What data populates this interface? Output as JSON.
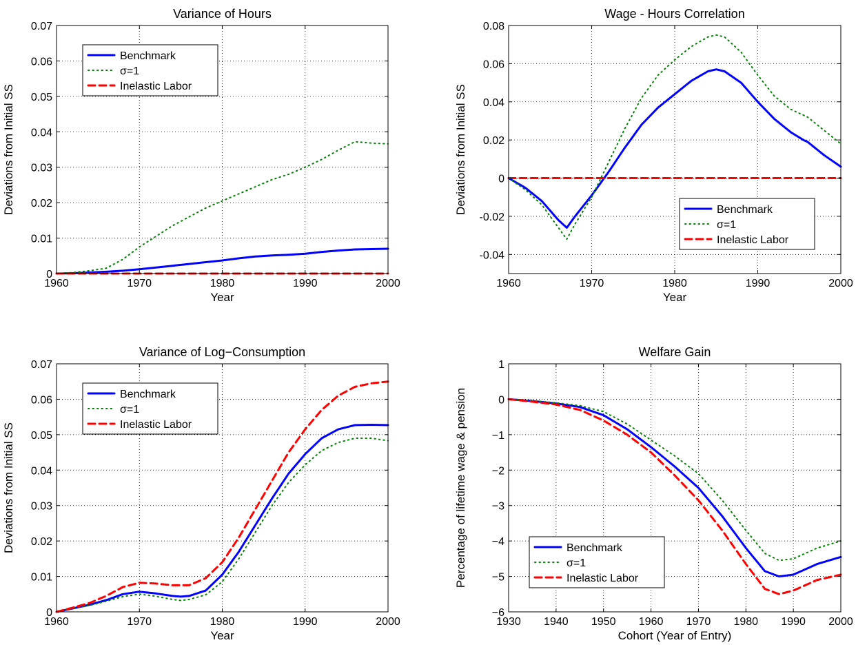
{
  "colors": {
    "benchmark": "#0000ff",
    "sigma": "#008000",
    "inelastic": "#ff0000"
  },
  "chart_data": [
    {
      "type": "line",
      "title": "Variance of Hours",
      "xlabel": "Year",
      "ylabel": "Deviations from Initial SS",
      "xlim": [
        1960,
        2000
      ],
      "ylim": [
        0,
        0.07
      ],
      "xticks": [
        1960,
        1970,
        1980,
        1990,
        2000
      ],
      "yticks": [
        0,
        0.01,
        0.02,
        0.03,
        0.04,
        0.05,
        0.06,
        0.07
      ],
      "ytick_labels": [
        "0",
        "0.01",
        "0.02",
        "0.03",
        "0.04",
        "0.05",
        "0.06",
        "0.07"
      ],
      "grid": true,
      "legend_placement": "upper-left",
      "series": [
        {
          "name": "Benchmark",
          "style": "solid",
          "color": "#0000ff",
          "x": [
            1960,
            1962,
            1964,
            1966,
            1968,
            1970,
            1972,
            1974,
            1976,
            1978,
            1980,
            1982,
            1984,
            1986,
            1988,
            1990,
            1992,
            1994,
            1996,
            1998,
            2000
          ],
          "y": [
            0,
            0.0001,
            0.0003,
            0.0005,
            0.0008,
            0.0012,
            0.0017,
            0.0022,
            0.0027,
            0.0032,
            0.0037,
            0.0043,
            0.0048,
            0.0051,
            0.0053,
            0.0056,
            0.0061,
            0.0065,
            0.0068,
            0.0069,
            0.007
          ]
        },
        {
          "name": "σ=1",
          "style": "dotted",
          "color": "#008000",
          "x": [
            1960,
            1962,
            1964,
            1966,
            1968,
            1970,
            1972,
            1974,
            1976,
            1978,
            1980,
            1982,
            1984,
            1986,
            1988,
            1990,
            1992,
            1994,
            1996,
            1998,
            2000
          ],
          "y": [
            0,
            0.0003,
            0.0008,
            0.0015,
            0.004,
            0.0075,
            0.0105,
            0.0135,
            0.016,
            0.0185,
            0.0205,
            0.0225,
            0.0245,
            0.0265,
            0.028,
            0.03,
            0.0322,
            0.0348,
            0.0372,
            0.0368,
            0.0366
          ]
        },
        {
          "name": "Inelastic Labor",
          "style": "dashed",
          "color": "#ff0000",
          "x": [
            1960,
            2000
          ],
          "y": [
            0,
            0
          ]
        }
      ]
    },
    {
      "type": "line",
      "title": "Wage - Hours Correlation",
      "xlabel": "Year",
      "ylabel": "Deviations from Initial SS",
      "xlim": [
        1960,
        2000
      ],
      "ylim": [
        -0.05,
        0.08
      ],
      "xticks": [
        1960,
        1970,
        1980,
        1990,
        2000
      ],
      "yticks": [
        -0.04,
        -0.02,
        0,
        0.02,
        0.04,
        0.06,
        0.08
      ],
      "ytick_labels": [
        "-0.04",
        "-0.02",
        "0",
        "0.02",
        "0.04",
        "0.06",
        "0.08"
      ],
      "grid": true,
      "legend_placement": "lower-right",
      "series": [
        {
          "name": "Benchmark",
          "style": "solid",
          "color": "#0000ff",
          "x": [
            1960,
            1962,
            1964,
            1966,
            1967,
            1968,
            1970,
            1972,
            1974,
            1976,
            1978,
            1980,
            1982,
            1984,
            1985,
            1986,
            1988,
            1990,
            1992,
            1994,
            1995.5,
            1996,
            1998,
            2000
          ],
          "y": [
            0,
            -0.005,
            -0.012,
            -0.022,
            -0.026,
            -0.02,
            -0.009,
            0.003,
            0.016,
            0.028,
            0.037,
            0.044,
            0.051,
            0.056,
            0.057,
            0.056,
            0.05,
            0.04,
            0.031,
            0.024,
            0.02,
            0.019,
            0.012,
            0.006
          ]
        },
        {
          "name": "σ=1",
          "style": "dotted",
          "color": "#008000",
          "x": [
            1960,
            1962,
            1964,
            1966,
            1967,
            1968,
            1970,
            1972,
            1974,
            1976,
            1978,
            1980,
            1982,
            1984,
            1985,
            1986,
            1988,
            1990,
            1992,
            1994,
            1996,
            1998,
            2000
          ],
          "y": [
            0,
            -0.006,
            -0.014,
            -0.026,
            -0.032,
            -0.024,
            -0.01,
            0.008,
            0.026,
            0.042,
            0.054,
            0.062,
            0.069,
            0.074,
            0.075,
            0.074,
            0.066,
            0.054,
            0.043,
            0.036,
            0.032,
            0.025,
            0.018
          ]
        },
        {
          "name": "Inelastic Labor",
          "style": "dashed",
          "color": "#ff0000",
          "x": [
            1960,
            2000
          ],
          "y": [
            0,
            0
          ]
        }
      ]
    },
    {
      "type": "line",
      "title": "Variance of Log−Consumption",
      "xlabel": "Year",
      "ylabel": "Deviations from Initial SS",
      "xlim": [
        1960,
        2000
      ],
      "ylim": [
        0,
        0.07
      ],
      "xticks": [
        1960,
        1970,
        1980,
        1990,
        2000
      ],
      "yticks": [
        0,
        0.01,
        0.02,
        0.03,
        0.04,
        0.05,
        0.06,
        0.07
      ],
      "ytick_labels": [
        "0",
        "0.01",
        "0.02",
        "0.03",
        "0.04",
        "0.05",
        "0.06",
        "0.07"
      ],
      "grid": true,
      "legend_placement": "upper-left",
      "series": [
        {
          "name": "Benchmark",
          "style": "solid",
          "color": "#0000ff",
          "x": [
            1960,
            1962,
            1964,
            1966,
            1968,
            1970,
            1972,
            1974,
            1975,
            1976,
            1978,
            1980,
            1982,
            1984,
            1986,
            1988,
            1990,
            1992,
            1994,
            1996,
            1998,
            2000
          ],
          "y": [
            0,
            0.001,
            0.002,
            0.0033,
            0.005,
            0.0057,
            0.0052,
            0.0045,
            0.0043,
            0.0045,
            0.006,
            0.0105,
            0.017,
            0.0245,
            0.032,
            0.039,
            0.0445,
            0.049,
            0.0515,
            0.0527,
            0.0528,
            0.0527
          ]
        },
        {
          "name": "σ=1",
          "style": "dotted",
          "color": "#008000",
          "x": [
            1960,
            1962,
            1964,
            1966,
            1968,
            1970,
            1972,
            1974,
            1975,
            1976,
            1978,
            1980,
            1982,
            1984,
            1986,
            1988,
            1990,
            1992,
            1994,
            1996,
            1998,
            2000
          ],
          "y": [
            0,
            0.001,
            0.0018,
            0.003,
            0.0043,
            0.005,
            0.0044,
            0.0035,
            0.0032,
            0.0035,
            0.0048,
            0.0085,
            0.015,
            0.0225,
            0.03,
            0.0365,
            0.0415,
            0.0455,
            0.0478,
            0.049,
            0.049,
            0.0483
          ]
        },
        {
          "name": "Inelastic Labor",
          "style": "dashed",
          "color": "#ff0000",
          "x": [
            1960,
            1962,
            1964,
            1966,
            1968,
            1970,
            1972,
            1974,
            1976,
            1978,
            1980,
            1982,
            1984,
            1986,
            1988,
            1990,
            1992,
            1994,
            1996,
            1998,
            2000
          ],
          "y": [
            0,
            0.0012,
            0.0025,
            0.0045,
            0.007,
            0.0082,
            0.008,
            0.0075,
            0.0075,
            0.0095,
            0.014,
            0.021,
            0.029,
            0.037,
            0.045,
            0.0515,
            0.057,
            0.061,
            0.0635,
            0.0645,
            0.065
          ]
        }
      ]
    },
    {
      "type": "line",
      "title": "Welfare Gain",
      "xlabel": "Cohort (Year of Entry)",
      "ylabel": "Percentage of lifetime wage & pension",
      "xlim": [
        1930,
        2000
      ],
      "ylim": [
        -6,
        1
      ],
      "xticks": [
        1930,
        1940,
        1950,
        1960,
        1970,
        1980,
        1990,
        2000
      ],
      "yticks": [
        -6,
        -5,
        -4,
        -3,
        -2,
        -1,
        0,
        1
      ],
      "ytick_labels": [
        "−6",
        "−5",
        "−4",
        "−3",
        "−2",
        "−1",
        "0",
        "1"
      ],
      "grid": true,
      "legend_placement": "lower-left",
      "series": [
        {
          "name": "Benchmark",
          "style": "solid",
          "color": "#0000ff",
          "x": [
            1930,
            1935,
            1940,
            1945,
            1950,
            1955,
            1960,
            1965,
            1970,
            1975,
            1980,
            1984,
            1987,
            1990,
            1995,
            2000
          ],
          "y": [
            0,
            -0.05,
            -0.12,
            -0.22,
            -0.45,
            -0.85,
            -1.35,
            -1.9,
            -2.5,
            -3.3,
            -4.2,
            -4.85,
            -5.0,
            -4.95,
            -4.65,
            -4.45
          ]
        },
        {
          "name": "σ=1",
          "style": "dotted",
          "color": "#008000",
          "x": [
            1930,
            1935,
            1940,
            1945,
            1950,
            1955,
            1960,
            1965,
            1970,
            1975,
            1980,
            1984,
            1987,
            1990,
            1995,
            2000
          ],
          "y": [
            0,
            -0.04,
            -0.1,
            -0.18,
            -0.35,
            -0.7,
            -1.15,
            -1.6,
            -2.1,
            -2.85,
            -3.7,
            -4.35,
            -4.55,
            -4.5,
            -4.2,
            -4.0
          ]
        },
        {
          "name": "Inelastic Labor",
          "style": "dashed",
          "color": "#ff0000",
          "x": [
            1930,
            1935,
            1940,
            1945,
            1950,
            1955,
            1960,
            1965,
            1970,
            1975,
            1980,
            1984,
            1987,
            1990,
            1995,
            2000
          ],
          "y": [
            0,
            -0.07,
            -0.15,
            -0.3,
            -0.6,
            -1.0,
            -1.5,
            -2.15,
            -2.85,
            -3.7,
            -4.65,
            -5.35,
            -5.5,
            -5.4,
            -5.1,
            -4.95
          ]
        }
      ]
    }
  ]
}
